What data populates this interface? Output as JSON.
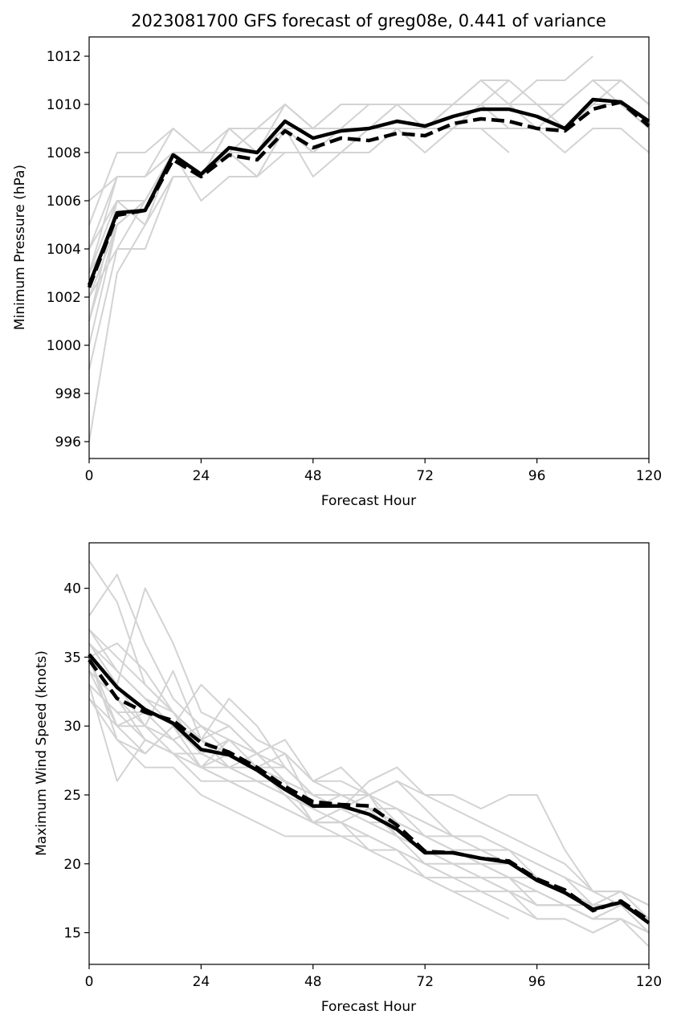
{
  "title": "2023081700 GFS forecast of greg08e, 0.441 of variance",
  "colors": {
    "member": "#d3d3d3",
    "mean": "#000000",
    "frame": "#000000"
  },
  "chart_data": [
    {
      "type": "line",
      "id": "pressure",
      "title": "2023081700 GFS forecast of greg08e, 0.441 of variance",
      "xlabel": "Forecast Hour",
      "ylabel": "Minimum Pressure (hPa)",
      "xlim": [
        0,
        120
      ],
      "ylim": [
        995.3,
        1012.8
      ],
      "xticks": [
        0,
        24,
        48,
        72,
        96,
        120
      ],
      "yticks": [
        996,
        998,
        1000,
        1002,
        1004,
        1006,
        1008,
        1010,
        1012
      ],
      "x": [
        0,
        6,
        12,
        18,
        24,
        30,
        36,
        42,
        48,
        54,
        60,
        66,
        72,
        78,
        84,
        90,
        96,
        102,
        108,
        114,
        120
      ],
      "series": [
        {
          "name": "solid-mean",
          "style": "solid",
          "values": [
            1002.5,
            1005.5,
            1005.6,
            1007.9,
            1007.1,
            1008.2,
            1008.0,
            1009.3,
            1008.6,
            1008.9,
            1009.0,
            1009.3,
            1009.1,
            1009.5,
            1009.8,
            1009.8,
            1009.5,
            1009.0,
            1010.2,
            1010.1,
            1009.3
          ]
        },
        {
          "name": "dashed-mean",
          "style": "dashed",
          "values": [
            1002.4,
            1005.4,
            1005.6,
            1007.7,
            1007.0,
            1007.9,
            1007.7,
            1008.9,
            1008.2,
            1008.6,
            1008.5,
            1008.8,
            1008.7,
            1009.2,
            1009.4,
            1009.3,
            1009.0,
            1008.9,
            1009.8,
            1010.1,
            1009.1
          ]
        }
      ],
      "members": [
        [
          996,
          1003,
          1005,
          1007,
          1007,
          1008,
          1008,
          1009,
          1008,
          1009,
          1009,
          1010,
          1009,
          1010,
          1010,
          1010,
          1010,
          1009,
          1010,
          1010,
          1009
        ],
        [
          999,
          1004,
          1006,
          1008,
          1007,
          1008,
          1008,
          1010,
          1009,
          1009,
          1009,
          1009,
          1009,
          1009,
          1009,
          1009
        ],
        [
          1000,
          1005,
          1006,
          1008,
          1007,
          1008,
          1007,
          1009,
          1008,
          1008,
          1008,
          1009,
          1009,
          1009,
          1010,
          1010,
          1009,
          1008,
          1009,
          1009,
          1008
        ],
        [
          1001,
          1006,
          1005,
          1007,
          1007,
          1009,
          1008,
          1009,
          1008,
          1009,
          1009,
          1009,
          1009,
          1010,
          1011,
          1011,
          1010,
          1009,
          1010,
          1011,
          1010
        ],
        [
          1002,
          1005,
          1006,
          1008,
          1007,
          1008,
          1008,
          1008,
          1008,
          1008,
          1009,
          1009,
          1009,
          1009,
          1009,
          1009,
          1009,
          1010,
          1011,
          1011,
          1010
        ],
        [
          1003,
          1006,
          1006,
          1008,
          1007,
          1008,
          1008,
          1010,
          1009,
          1010,
          1010,
          1010,
          1010,
          1010,
          1011,
          1010,
          1010,
          1010,
          1011,
          1010,
          1009
        ],
        [
          1003,
          1007,
          1007,
          1009,
          1008,
          1009,
          1009,
          1009,
          1009,
          1009,
          1009,
          1010,
          1010,
          1010,
          1010,
          1010,
          1009,
          1009,
          1010,
          1010,
          1009
        ],
        [
          1004,
          1006,
          1005,
          1008,
          1006,
          1007,
          1007,
          1009,
          1008,
          1008,
          1008,
          1009,
          1008,
          1009,
          1009,
          1008
        ],
        [
          1004,
          1007,
          1007,
          1008,
          1007,
          1009,
          1008,
          1009,
          1008,
          1008,
          1009,
          1009,
          1009,
          1009,
          1009,
          1009,
          1009,
          1010,
          1011,
          1011,
          1010
        ],
        [
          1005,
          1008,
          1008,
          1009,
          1008,
          1008,
          1009,
          1010,
          1009,
          1010,
          1010,
          1010,
          1010,
          1010,
          1010,
          1010,
          1011,
          1011,
          1012
        ],
        [
          1002,
          1004,
          1004,
          1007,
          1007,
          1008,
          1008,
          1009,
          1007,
          1008,
          1009,
          1009,
          1009,
          1009,
          1010,
          1009,
          1009,
          1009,
          1010,
          1010,
          1009
        ],
        [
          1006,
          1007,
          1007,
          1008,
          1008,
          1008,
          1009,
          1010,
          1009,
          1009,
          1010,
          1010,
          1010,
          1010,
          1010,
          1010,
          1010,
          1009,
          1010,
          1010,
          1009
        ],
        [
          1003,
          1005,
          1006,
          1008,
          1007,
          1008,
          1007,
          1008,
          1008,
          1009,
          1009,
          1009,
          1009,
          1010,
          1010,
          1011
        ],
        [
          1001,
          1005,
          1006,
          1008,
          1007,
          1008,
          1008,
          1009,
          1008,
          1009,
          1009,
          1009,
          1009,
          1009,
          1010,
          1010,
          1009,
          1009,
          1010,
          1010,
          1009
        ]
      ]
    },
    {
      "type": "line",
      "id": "wind",
      "title": "",
      "xlabel": "Forecast Hour",
      "ylabel": "Maximum Wind Speed (knots)",
      "xlim": [
        0,
        120
      ],
      "ylim": [
        12.7,
        43.3
      ],
      "xticks": [
        0,
        24,
        48,
        72,
        96,
        120
      ],
      "yticks": [
        15,
        20,
        25,
        30,
        35,
        40
      ],
      "x": [
        0,
        6,
        12,
        18,
        24,
        30,
        36,
        42,
        48,
        54,
        60,
        66,
        72,
        78,
        84,
        90,
        96,
        102,
        108,
        114,
        120
      ],
      "series": [
        {
          "name": "solid-mean",
          "style": "solid",
          "values": [
            35.2,
            32.8,
            31.2,
            30.2,
            28.3,
            27.9,
            26.8,
            25.4,
            24.2,
            24.2,
            23.6,
            22.5,
            20.8,
            20.8,
            20.4,
            20.1,
            18.8,
            17.9,
            16.7,
            17.2,
            15.7
          ]
        },
        {
          "name": "dashed-mean",
          "style": "dashed",
          "values": [
            34.8,
            32.0,
            31.0,
            30.4,
            28.8,
            28.1,
            27.0,
            25.6,
            24.5,
            24.3,
            24.2,
            22.8,
            20.9,
            20.8,
            20.4,
            20.2,
            18.9,
            18.1,
            16.6,
            17.3,
            15.9
          ]
        }
      ],
      "members": [
        [
          42,
          39,
          33,
          31,
          29,
          28,
          27,
          25,
          24,
          23,
          22,
          21,
          19,
          18,
          18,
          17,
          16,
          16,
          15,
          16,
          14
        ],
        [
          38,
          41,
          36,
          32,
          30,
          29,
          28,
          27,
          25,
          25,
          24,
          22,
          21,
          20,
          19,
          19,
          18,
          17,
          16,
          17,
          15
        ],
        [
          36,
          33,
          40,
          36,
          31,
          30,
          28,
          26,
          25,
          24,
          23,
          22,
          21,
          20,
          20,
          19,
          17,
          17,
          16,
          17,
          15
        ],
        [
          33,
          26,
          29,
          28,
          27,
          26,
          25,
          24,
          23,
          23,
          22,
          21,
          20,
          19,
          19,
          18,
          17,
          17,
          16,
          16,
          15
        ],
        [
          35,
          36,
          34,
          31,
          29,
          30,
          28,
          26,
          25,
          25,
          24,
          23,
          22,
          22,
          21,
          21,
          19,
          18,
          17,
          18,
          16
        ],
        [
          37,
          34,
          32,
          30,
          33,
          31,
          29,
          28,
          26,
          26,
          25,
          24,
          23,
          22,
          22,
          21,
          20,
          19,
          17,
          17,
          16
        ],
        [
          34,
          30,
          30,
          34,
          29,
          32,
          30,
          27,
          25,
          24,
          25,
          26,
          25,
          25,
          24,
          25,
          25,
          21,
          18,
          18,
          17
        ],
        [
          32,
          29,
          28,
          30,
          27,
          27,
          26,
          25,
          23,
          24,
          26,
          27,
          25,
          24,
          23,
          22,
          21,
          20,
          18,
          18,
          17
        ],
        [
          36,
          33,
          30,
          29,
          27,
          28,
          27,
          27,
          25,
          24,
          23,
          23,
          22,
          21,
          20,
          19,
          19,
          18,
          17,
          17,
          16
        ],
        [
          33,
          31,
          29,
          28,
          26,
          26,
          25,
          24,
          23,
          22,
          21,
          21,
          20,
          20,
          19,
          18,
          18,
          17,
          17,
          17,
          16
        ],
        [
          35,
          30,
          28,
          30,
          28,
          29,
          27,
          28,
          24,
          25,
          24,
          24,
          22,
          21,
          20,
          20,
          19,
          18,
          17,
          17,
          16
        ],
        [
          34,
          32,
          30,
          28,
          28,
          27,
          26,
          26,
          23,
          23,
          21,
          20,
          19,
          18,
          17,
          16
        ],
        [
          36,
          34,
          32,
          31,
          29,
          27,
          28,
          29,
          26,
          27,
          25,
          23,
          22,
          21,
          21,
          20,
          19,
          18,
          17,
          18,
          17
        ],
        [
          33,
          31,
          31,
          29,
          30,
          28,
          27,
          26,
          25,
          24,
          23,
          22,
          21,
          20,
          20,
          19,
          18,
          17,
          16,
          17,
          16
        ],
        [
          35,
          29,
          27,
          27,
          25,
          24,
          23,
          22,
          22,
          22,
          22,
          21,
          19,
          19,
          18,
          18,
          17,
          17,
          16,
          16,
          15
        ],
        [
          32,
          30,
          31,
          29,
          27,
          26,
          26,
          25,
          23,
          23,
          24,
          24,
          23,
          22,
          22,
          21,
          20,
          19,
          18,
          17,
          16
        ],
        [
          37,
          35,
          33,
          31,
          28,
          27,
          27,
          28,
          26,
          25,
          25,
          26,
          24,
          22,
          21,
          20,
          19,
          18,
          17,
          17,
          16
        ],
        [
          34,
          32,
          29,
          28,
          27,
          29,
          28,
          26,
          23,
          24,
          25,
          22,
          20,
          19,
          19,
          18,
          16,
          16,
          15,
          16,
          15
        ]
      ]
    }
  ]
}
